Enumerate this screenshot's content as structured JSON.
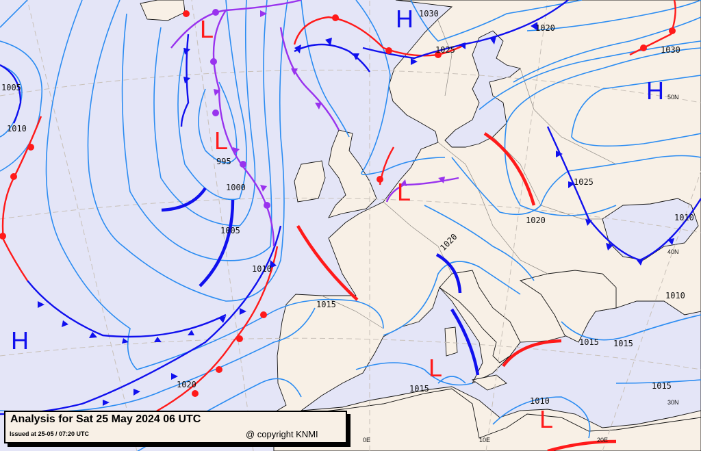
{
  "map": {
    "type": "surface pressure analysis chart",
    "colors": {
      "sea": "#e4e5f7",
      "land": "#f8f0e6",
      "isobar": "#2b8cf2",
      "warm_front": "#ff1a1a",
      "cold_front": "#1010ee",
      "occluded_front": "#9933ee",
      "high": "#1010ee",
      "low": "#ff1a1a"
    },
    "pressure_centers": [
      "H",
      "L",
      "L",
      "L",
      "H",
      "H",
      "L",
      "L"
    ],
    "isobar_labels": [
      "1005",
      "1010",
      "995",
      "1000",
      "1005",
      "1010",
      "1015",
      "1020",
      "1030",
      "1025",
      "1020",
      "1030",
      "1025",
      "1020",
      "1020",
      "1010",
      "1015",
      "1015",
      "1015",
      "1010",
      "1015",
      "1010"
    ],
    "grid_labels": [
      "50N",
      "40N",
      "30N",
      "0E",
      "10E",
      "20E"
    ]
  },
  "caption": {
    "title": "Analysis for Sat 25 May 2024 06 UTC",
    "issued": "Issued at 25-05 / 07:20 UTC",
    "copyright": "@ copyright KNMI"
  }
}
